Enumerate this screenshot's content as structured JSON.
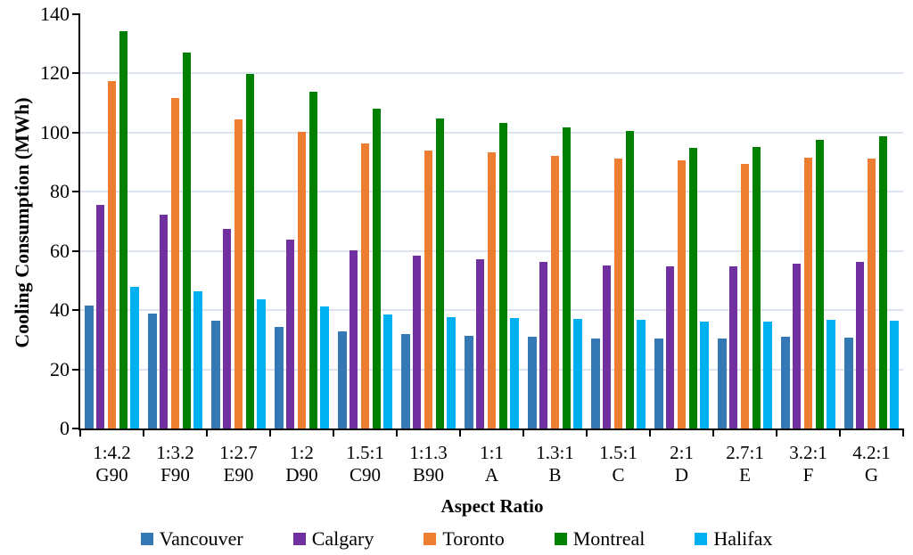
{
  "figure": {
    "background": "#ffffff",
    "axis_color": "#000000",
    "gridline_color": "#dde4f0"
  },
  "chart_data": {
    "type": "bar",
    "title": "",
    "xlabel": "Aspect Ratio",
    "ylabel": "Cooling Consumption (MWh)",
    "ylim": [
      0,
      140
    ],
    "ytick_step": 20,
    "grid": true,
    "legend_position": "bottom",
    "categories": [
      {
        "ratio": "1:4.2",
        "code": "G90"
      },
      {
        "ratio": "1:3.2",
        "code": "F90"
      },
      {
        "ratio": "1:2.7",
        "code": "E90"
      },
      {
        "ratio": "1:2",
        "code": "D90"
      },
      {
        "ratio": "1.5:1",
        "code": "C90"
      },
      {
        "ratio": "1:1.3",
        "code": "B90"
      },
      {
        "ratio": "1:1",
        "code": "A"
      },
      {
        "ratio": "1.3:1",
        "code": "B"
      },
      {
        "ratio": "1.5:1",
        "code": "C"
      },
      {
        "ratio": "2:1",
        "code": "D"
      },
      {
        "ratio": "2.7:1",
        "code": "E"
      },
      {
        "ratio": "3.2:1",
        "code": "F"
      },
      {
        "ratio": "4.2:1",
        "code": "G"
      }
    ],
    "series": [
      {
        "name": "Vancouver",
        "color": "#3478B6",
        "values": [
          41.4,
          38.9,
          36.4,
          34.3,
          32.8,
          31.9,
          31.4,
          30.9,
          30.5,
          30.3,
          30.3,
          30.9,
          30.7
        ]
      },
      {
        "name": "Calgary",
        "color": "#7030A0",
        "values": [
          75.7,
          72.2,
          67.5,
          63.9,
          60.3,
          58.3,
          57.3,
          56.3,
          55.2,
          54.8,
          54.8,
          55.8,
          56.3
        ]
      },
      {
        "name": "Toronto",
        "color": "#ED7D31",
        "values": [
          117.5,
          111.8,
          104.4,
          100.2,
          96.3,
          93.8,
          93.2,
          92.1,
          91.1,
          90.6,
          89.5,
          91.4,
          91.2
        ]
      },
      {
        "name": "Montreal",
        "color": "#008000",
        "values": [
          134.2,
          127.2,
          119.8,
          113.8,
          108.0,
          104.8,
          103.3,
          101.8,
          100.6,
          94.8,
          95.1,
          97.5,
          98.8
        ]
      },
      {
        "name": "Halifax",
        "color": "#00B0F0",
        "values": [
          47.9,
          46.4,
          43.6,
          41.2,
          38.6,
          37.6,
          37.4,
          37.0,
          36.6,
          36.1,
          36.1,
          36.7,
          36.4
        ]
      }
    ]
  }
}
